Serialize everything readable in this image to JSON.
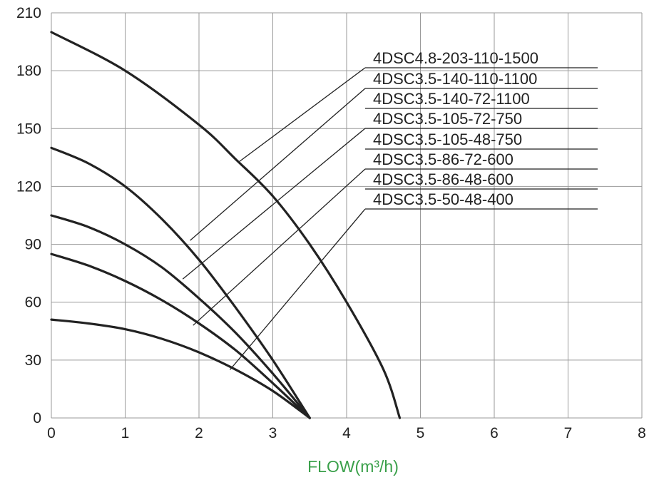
{
  "chart_data": {
    "type": "line",
    "title": "",
    "xlabel": "FLOW(m³/h)",
    "ylabel": "",
    "xlim": [
      0,
      8
    ],
    "ylim": [
      0,
      210
    ],
    "x_ticks": [
      "0",
      "1",
      "2",
      "3",
      "4",
      "5",
      "6",
      "7",
      "8"
    ],
    "y_ticks": [
      "0",
      "30",
      "60",
      "90",
      "120",
      "150",
      "180",
      "210"
    ],
    "grid": true,
    "legend_placement": "top-right",
    "series": [
      {
        "name": "4DSC4.8-203-110-1500",
        "x": [
          0,
          1,
          2,
          2.5,
          3,
          3.5,
          4,
          4.5,
          4.72
        ],
        "y": [
          200,
          180,
          152,
          134,
          115,
          90,
          60,
          25,
          0
        ],
        "curves": [
          0
        ]
      },
      {
        "name": "4DSC3.5-140-110-1100",
        "x": [
          0,
          0.5,
          1,
          1.5,
          2,
          2.5,
          3,
          3.5
        ],
        "y": [
          140,
          132,
          120,
          103,
          82,
          57,
          30,
          0
        ],
        "curves": [
          1
        ]
      },
      {
        "name": "4DSC3.5-140-72-1100",
        "x": [
          0,
          0.5,
          1,
          1.5,
          2,
          2.5,
          3,
          3.5
        ],
        "y": [
          140,
          132,
          120,
          103,
          82,
          57,
          30,
          0
        ],
        "curves": [
          1
        ]
      },
      {
        "name": "4DSC3.5-105-72-750",
        "x": [
          0,
          0.5,
          1,
          1.5,
          2,
          2.5,
          3,
          3.5
        ],
        "y": [
          105,
          99,
          90,
          78,
          62,
          44,
          23,
          0
        ],
        "curves": [
          2
        ]
      },
      {
        "name": "4DSC3.5-105-48-750",
        "x": [
          0,
          0.5,
          1,
          1.5,
          2,
          2.5,
          3,
          3.5
        ],
        "y": [
          105,
          99,
          90,
          78,
          62,
          44,
          23,
          0
        ],
        "curves": [
          2
        ]
      },
      {
        "name": "4DSC3.5-86-72-600",
        "x": [
          0,
          0.5,
          1,
          1.5,
          2,
          2.5,
          3,
          3.5
        ],
        "y": [
          85,
          79,
          71,
          61,
          49,
          35,
          18,
          0
        ],
        "curves": [
          3
        ]
      },
      {
        "name": "4DSC3.5-86-48-600",
        "x": [
          0,
          0.5,
          1,
          1.5,
          2,
          2.5,
          3,
          3.5
        ],
        "y": [
          85,
          79,
          71,
          61,
          49,
          35,
          18,
          0
        ],
        "curves": [
          3
        ]
      },
      {
        "name": "4DSC3.5-50-48-400",
        "x": [
          0,
          0.5,
          1,
          1.5,
          2,
          2.5,
          3,
          3.5
        ],
        "y": [
          51,
          49,
          46,
          41,
          34,
          25,
          14,
          0
        ],
        "curves": [
          4
        ]
      }
    ],
    "colors": {
      "curve": "#222222",
      "grid": "#9a9a9a",
      "axis_title": "#3aa04a",
      "text": "#222222"
    }
  }
}
